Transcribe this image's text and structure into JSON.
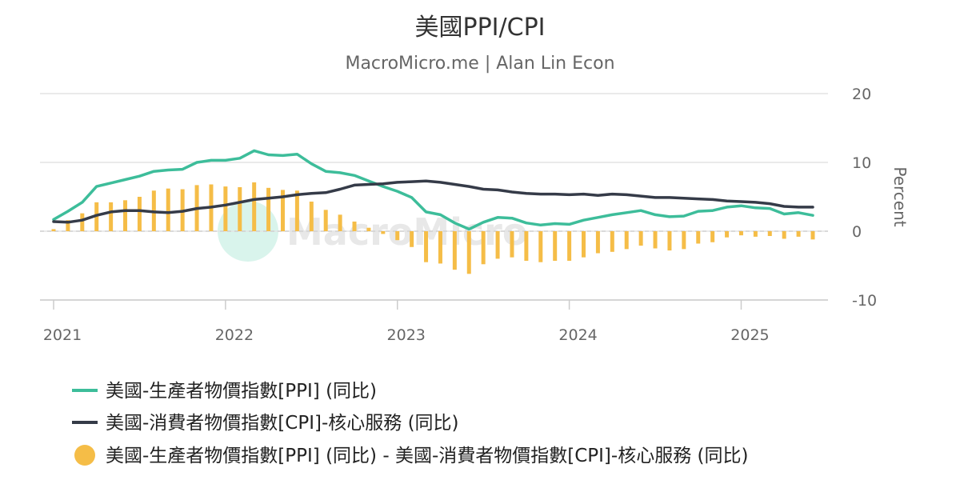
{
  "chart_data": {
    "type": "line",
    "title": "美國PPI/CPI",
    "subtitle": "MacroMicro.me | Alan Lin Econ",
    "watermark": "MacroMicro",
    "ylabel": "Percent",
    "ylim": [
      -10,
      20
    ],
    "yticks": [
      "20",
      "10",
      "0",
      "-10"
    ],
    "xticks": [
      "2021",
      "2022",
      "2023",
      "2024",
      "2025"
    ],
    "xlim": [
      "2021-01",
      "2025-06"
    ],
    "grid": true,
    "legend_position": "bottom-left",
    "x": [
      "2021-01",
      "2021-02",
      "2021-03",
      "2021-04",
      "2021-05",
      "2021-06",
      "2021-07",
      "2021-08",
      "2021-09",
      "2021-10",
      "2021-11",
      "2021-12",
      "2022-01",
      "2022-02",
      "2022-03",
      "2022-04",
      "2022-05",
      "2022-06",
      "2022-07",
      "2022-08",
      "2022-09",
      "2022-10",
      "2022-11",
      "2022-12",
      "2023-01",
      "2023-02",
      "2023-03",
      "2023-04",
      "2023-05",
      "2023-06",
      "2023-07",
      "2023-08",
      "2023-09",
      "2023-10",
      "2023-11",
      "2023-12",
      "2024-01",
      "2024-02",
      "2024-03",
      "2024-04",
      "2024-05",
      "2024-06",
      "2024-07",
      "2024-08",
      "2024-09",
      "2024-10",
      "2024-11",
      "2024-12",
      "2025-01",
      "2025-02",
      "2025-03",
      "2025-04",
      "2025-05",
      "2025-06"
    ],
    "series": [
      {
        "name": "美國-生產者物價指數[PPI] (同比)",
        "type": "line",
        "color": "#3dbd9a",
        "values": [
          1.7,
          2.9,
          4.2,
          6.5,
          7.0,
          7.5,
          8.0,
          8.7,
          8.9,
          9.0,
          10.0,
          10.3,
          10.3,
          10.6,
          11.7,
          11.1,
          11.0,
          11.2,
          9.8,
          8.7,
          8.5,
          8.1,
          7.3,
          6.5,
          5.8,
          4.9,
          2.8,
          2.4,
          1.2,
          0.3,
          1.3,
          2.0,
          1.9,
          1.2,
          0.9,
          1.1,
          1.0,
          1.6,
          2.0,
          2.4,
          2.7,
          3.0,
          2.4,
          2.1,
          2.2,
          2.9,
          3.0,
          3.5,
          3.7,
          3.4,
          3.3,
          2.5,
          2.7,
          2.3
        ]
      },
      {
        "name": "美國-消費者物價指數[CPI]-核心服務 (同比)",
        "type": "line",
        "color": "#353b48",
        "values": [
          1.4,
          1.3,
          1.6,
          2.3,
          2.8,
          3.0,
          3.0,
          2.8,
          2.7,
          2.9,
          3.3,
          3.5,
          3.8,
          4.2,
          4.6,
          4.8,
          5.0,
          5.3,
          5.5,
          5.6,
          6.1,
          6.7,
          6.8,
          6.9,
          7.1,
          7.2,
          7.3,
          7.1,
          6.8,
          6.5,
          6.1,
          6.0,
          5.7,
          5.5,
          5.4,
          5.4,
          5.3,
          5.4,
          5.2,
          5.4,
          5.3,
          5.1,
          4.9,
          4.9,
          4.8,
          4.7,
          4.6,
          4.4,
          4.3,
          4.2,
          4.0,
          3.6,
          3.5,
          3.5
        ]
      },
      {
        "name": "美國-生產者物價指數[PPI] (同比) - 美國-消費者物價指數[CPI]-核心服務 (同比)",
        "type": "bar",
        "color": "#f5bd47",
        "values": [
          0.3,
          1.6,
          2.6,
          4.2,
          4.2,
          4.5,
          5.0,
          5.9,
          6.2,
          6.1,
          6.7,
          6.8,
          6.5,
          6.4,
          7.1,
          6.3,
          6.0,
          5.9,
          4.3,
          3.1,
          2.4,
          1.4,
          0.5,
          -0.4,
          -1.3,
          -2.3,
          -4.5,
          -4.7,
          -5.6,
          -6.2,
          -4.8,
          -4.0,
          -3.8,
          -4.3,
          -4.5,
          -4.3,
          -4.3,
          -3.8,
          -3.2,
          -3.0,
          -2.6,
          -2.1,
          -2.5,
          -2.8,
          -2.6,
          -1.8,
          -1.6,
          -0.9,
          -0.6,
          -0.8,
          -0.7,
          -1.1,
          -0.8,
          -1.2
        ]
      }
    ]
  }
}
